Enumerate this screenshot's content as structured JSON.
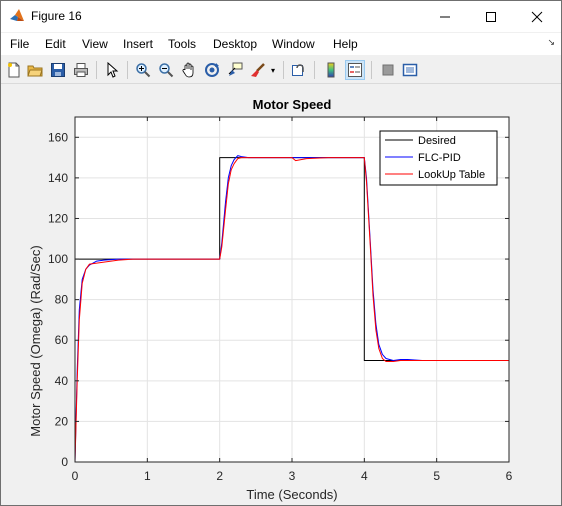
{
  "window": {
    "title": "Figure 16",
    "menu": [
      "File",
      "Edit",
      "View",
      "Insert",
      "Tools",
      "Desktop",
      "Window",
      "Help"
    ]
  },
  "toolbar": {
    "items": [
      "new-figure-icon",
      "open-file-icon",
      "save-icon",
      "print-icon",
      "pointer-icon",
      "zoom-in-icon",
      "zoom-out-icon",
      "pan-icon",
      "rotate-icon",
      "data-cursor-icon",
      "brush-icon",
      "link-plot-icon",
      "colorbar-icon",
      "legend-icon",
      "hide-plot-tools-icon",
      "show-plot-tools-icon"
    ]
  },
  "chart_data": {
    "type": "line",
    "title": "Motor Speed",
    "xlabel": "Time (Seconds)",
    "ylabel": "Motor Speed (Omega) (Rad/Sec)",
    "xlim": [
      0,
      6
    ],
    "ylim": [
      0,
      170
    ],
    "xticks": [
      0,
      1,
      2,
      3,
      4,
      5,
      6
    ],
    "yticks": [
      0,
      20,
      40,
      60,
      80,
      100,
      120,
      140,
      160
    ],
    "grid": true,
    "legend_position": "top-right",
    "series": [
      {
        "name": "Desired",
        "color": "#000000",
        "x": [
          0,
          0,
          2,
          2,
          4,
          4,
          6
        ],
        "y": [
          0,
          100,
          100,
          150,
          150,
          50,
          50
        ]
      },
      {
        "name": "FLC-PID",
        "color": "#0000ff",
        "x": [
          0,
          0.03,
          0.06,
          0.1,
          0.15,
          0.2,
          0.3,
          0.4,
          0.6,
          0.8,
          1.0,
          1.5,
          2.0,
          2.03,
          2.08,
          2.12,
          2.16,
          2.2,
          2.25,
          2.3,
          2.4,
          2.6,
          2.8,
          3.0,
          3.2,
          3.5,
          4.0,
          4.03,
          4.08,
          4.12,
          4.16,
          4.2,
          4.25,
          4.3,
          4.4,
          4.5,
          4.6,
          4.8,
          5.0,
          6.0
        ],
        "y": [
          0,
          45,
          75,
          90,
          95,
          97,
          99,
          99.5,
          100,
          100,
          100,
          100,
          100,
          108,
          128,
          140,
          146,
          149,
          151,
          150.5,
          150,
          150,
          150,
          150,
          150,
          150,
          150,
          140,
          110,
          85,
          68,
          58,
          53,
          51,
          50,
          50.5,
          50.5,
          50,
          50,
          50
        ]
      },
      {
        "name": "LookUp Table",
        "color": "#ff0000",
        "x": [
          0,
          0.03,
          0.06,
          0.1,
          0.15,
          0.2,
          0.3,
          0.4,
          0.5,
          0.6,
          0.8,
          1.0,
          1.5,
          2.0,
          2.03,
          2.08,
          2.12,
          2.16,
          2.2,
          2.25,
          2.3,
          2.4,
          2.6,
          2.8,
          3.0,
          3.05,
          3.2,
          3.5,
          4.0,
          4.03,
          4.08,
          4.12,
          4.16,
          4.2,
          4.25,
          4.3,
          4.4,
          4.5,
          4.6,
          4.8,
          5.0,
          6.0
        ],
        "y": [
          0,
          40,
          70,
          88,
          95,
          97.5,
          98,
          98.5,
          99,
          99.5,
          100,
          100,
          100,
          100,
          106,
          124,
          137,
          144,
          147,
          149.5,
          150,
          150,
          150,
          150,
          150,
          148.5,
          149.5,
          150,
          150,
          138,
          108,
          82,
          65,
          56,
          51,
          49.5,
          49.5,
          50,
          50,
          50,
          50,
          50
        ]
      }
    ]
  }
}
